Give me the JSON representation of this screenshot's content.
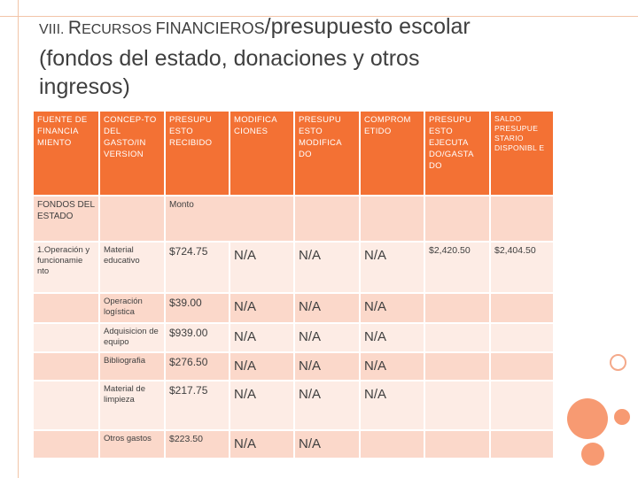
{
  "title": {
    "prefix": "VIII. ",
    "r_cap": "R",
    "recursos_rest": "ECURSOS ",
    "financieros": "FINANCIEROS",
    "slash_rest": "/presupuesto escolar",
    "line2": "(fondos del estado, donaciones y otros",
    "line3": "ingresos)"
  },
  "table": {
    "headers": [
      "FUENTE DE FINANCIA MIENTO",
      "CONCEP-TO DEL GASTO/IN VERSION",
      "PRESUPU ESTO RECIBIDO",
      "MODIFICA CIONES",
      "PRESUPU ESTO MODIFICA DO",
      "COMPROM ETIDO",
      "PRESUPU ESTO EJECUTA DO/GASTA DO",
      "SALDO PRESUPUE STARIO DISPONIBL E"
    ],
    "fondos_label": "FONDOS DEL ESTADO",
    "monto_label": "Monto",
    "rows": [
      {
        "fuente": "1.Operación y funcionamie nto",
        "concepto": "Material educativo",
        "recibido": "$724.75",
        "modificaciones": "N/A",
        "modificado": "N/A",
        "comprometido": "N/A",
        "ejecutado": "$2,420.50",
        "saldo": "$2,404.50"
      },
      {
        "fuente": "",
        "concepto": "Operación logística",
        "recibido": "$39.00",
        "modificaciones": "N/A",
        "modificado": "N/A",
        "comprometido": "N/A",
        "ejecutado": "",
        "saldo": ""
      },
      {
        "fuente": "",
        "concepto": "Adquisicion de equipo",
        "recibido": "$939.00",
        "modificaciones": "N/A",
        "modificado": "N/A",
        "comprometido": "N/A",
        "ejecutado": "",
        "saldo": ""
      },
      {
        "fuente": "",
        "concepto": "Bibliografia",
        "recibido": "$276.50",
        "modificaciones": "N/A",
        "modificado": "N/A",
        "comprometido": "N/A",
        "ejecutado": "",
        "saldo": ""
      },
      {
        "fuente": "",
        "concepto": "Material de limpieza",
        "recibido": "$217.75",
        "modificaciones": "N/A",
        "modificado": "N/A",
        "comprometido": "N/A",
        "ejecutado": "",
        "saldo": ""
      },
      {
        "fuente": "",
        "concepto": "Otros gastos",
        "recibido": "$223.50",
        "modificaciones": "N/A",
        "modificado": "N/A",
        "comprometido": "",
        "ejecutado": "",
        "saldo": ""
      }
    ]
  }
}
